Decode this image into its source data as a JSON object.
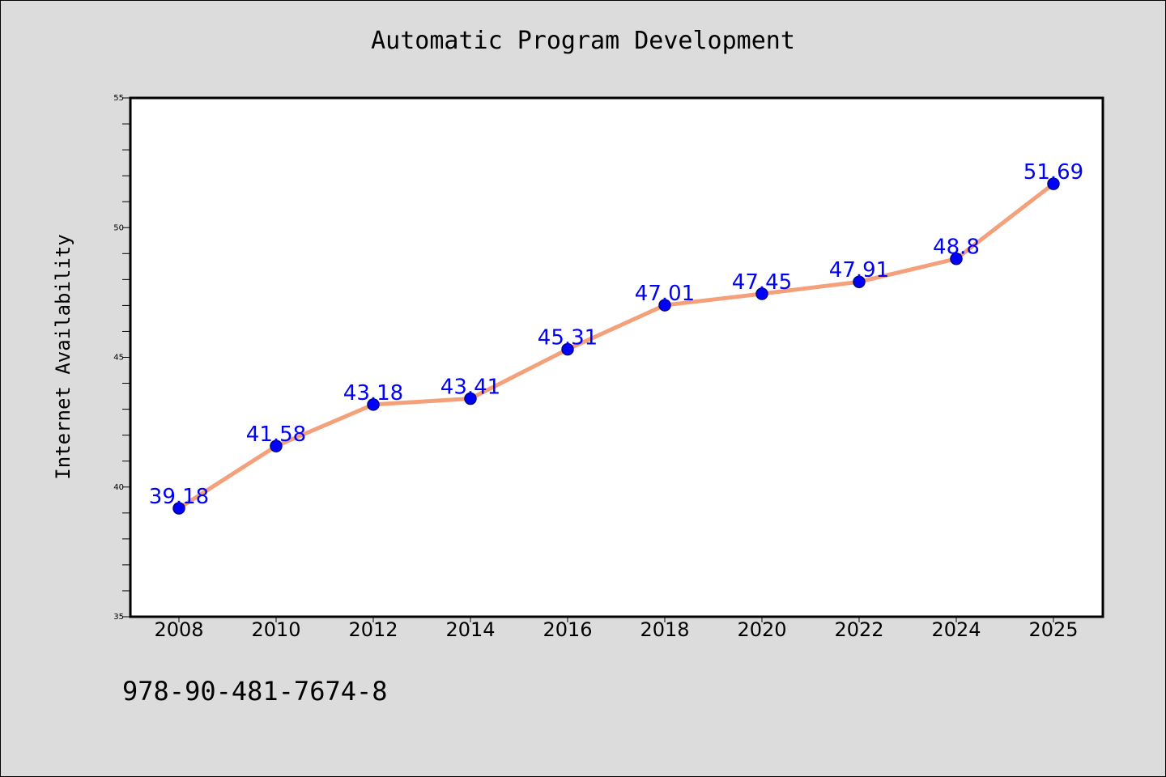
{
  "chart_data": {
    "type": "line",
    "title": "Automatic Program Development",
    "xlabel": "",
    "ylabel": "Internet Availability",
    "categories": [
      "2008",
      "2010",
      "2012",
      "2014",
      "2016",
      "2018",
      "2020",
      "2022",
      "2024",
      "2025"
    ],
    "series": [
      {
        "values": [
          39.18,
          41.58,
          43.18,
          43.41,
          45.31,
          47.01,
          47.45,
          47.91,
          48.8,
          51.69
        ],
        "data_labels": [
          "39.18",
          "41.58",
          "43.18",
          "43.41",
          "45.31",
          "47.01",
          "47.45",
          "47.91",
          "48.8",
          "51.69"
        ]
      }
    ],
    "ylim": [
      35,
      55
    ],
    "yticks": [
      "35",
      "40",
      "45",
      "50",
      "55"
    ],
    "grid": false,
    "legend": "none",
    "colors": {
      "line": "#f4a07a",
      "marker": "#0000ff",
      "marker_edge": "#000080",
      "data_label": "#0000ff",
      "background": "#dcdcdc",
      "plot_background": "#ffffff"
    }
  },
  "footer": {
    "code": "978-90-481-7674-8"
  }
}
